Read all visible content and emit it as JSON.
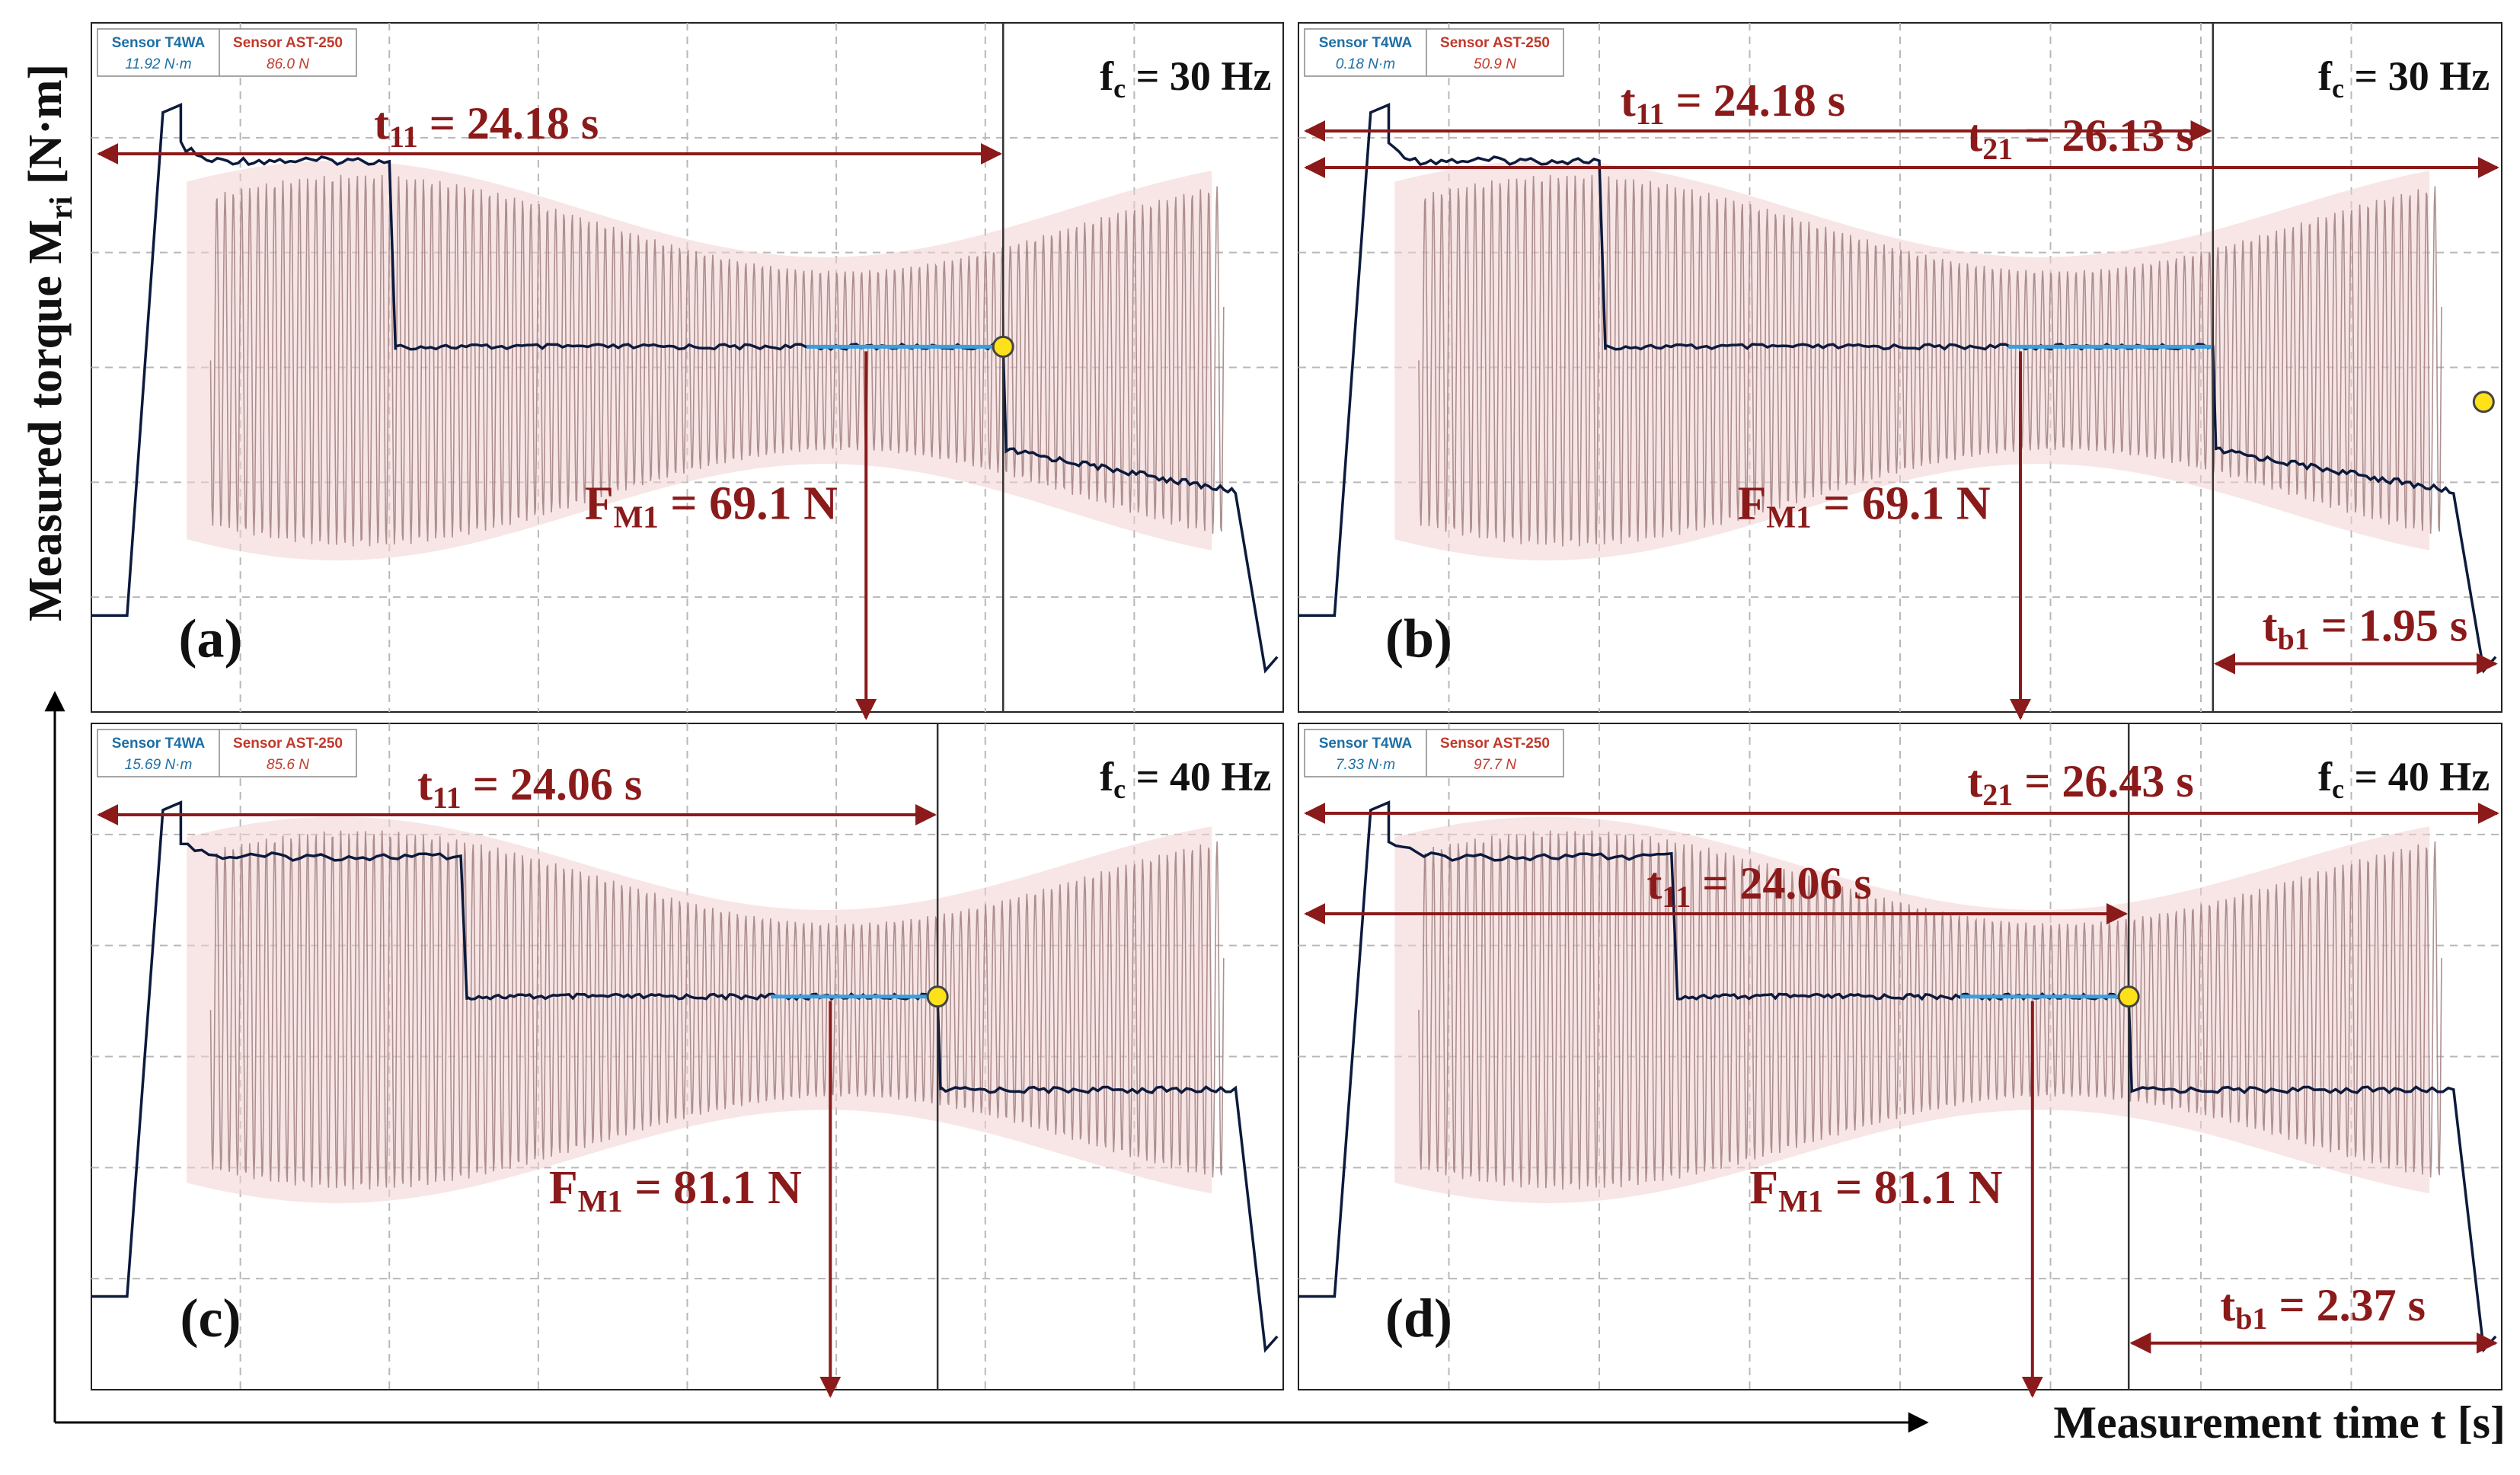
{
  "colors": {
    "annotation": "#8b1a1a",
    "legend_t4wa": "#1d6fa5",
    "legend_ast": "#c0392b",
    "signal_dark": "#0c1a3d",
    "signal_blue": "#39a0e0",
    "osc": "#a48484",
    "fill": "#f2d2d2",
    "marker": "#ffe11a",
    "grid": "#b8b8b8",
    "text": "#111111"
  },
  "axes": {
    "ylabel": "Measured torque M",
    "ylabel_sub": "ri",
    "ylabel_unit": " [N·m]",
    "xlabel": "Measurement time t [s]"
  },
  "chart_data": [
    {
      "type": "line",
      "panel": "(a)",
      "frequency": {
        "pre": "f",
        "sub": "c",
        "post": " = 30 Hz"
      },
      "legend": {
        "t4wa_name": "Sensor T4WA",
        "t4wa_value": "11.92 N·m",
        "ast_name": "Sensor AST-250",
        "ast_value": "86.0 N"
      },
      "force": {
        "pre": "F",
        "sub": "M1",
        "post": " = 69.1 N",
        "value_N": 69.1
      },
      "times": [
        {
          "pre": "t",
          "sub": "11",
          "post": " = 24.18 s",
          "value_s": 24.18
        }
      ]
    },
    {
      "type": "line",
      "panel": "(b)",
      "frequency": {
        "pre": "f",
        "sub": "c",
        "post": " = 30 Hz"
      },
      "legend": {
        "t4wa_name": "Sensor T4WA",
        "t4wa_value": "0.18 N·m",
        "ast_name": "Sensor AST-250",
        "ast_value": "50.9 N"
      },
      "force": {
        "pre": "F",
        "sub": "M1",
        "post": " = 69.1 N",
        "value_N": 69.1
      },
      "times": [
        {
          "pre": "t",
          "sub": "11",
          "post": " = 24.18 s",
          "value_s": 24.18
        },
        {
          "pre": "t",
          "sub": "21",
          "post": " = 26.13 s",
          "value_s": 26.13
        },
        {
          "pre": "t",
          "sub": "b1",
          "post": " = 1.95 s",
          "value_s": 1.95
        }
      ]
    },
    {
      "type": "line",
      "panel": "(c)",
      "frequency": {
        "pre": "f",
        "sub": "c",
        "post": " = 40 Hz"
      },
      "legend": {
        "t4wa_name": "Sensor T4WA",
        "t4wa_value": "15.69 N·m",
        "ast_name": "Sensor AST-250",
        "ast_value": "85.6 N"
      },
      "force": {
        "pre": "F",
        "sub": "M1",
        "post": " = 81.1 N",
        "value_N": 81.1
      },
      "times": [
        {
          "pre": "t",
          "sub": "11",
          "post": " = 24.06 s",
          "value_s": 24.06
        }
      ]
    },
    {
      "type": "line",
      "panel": "(d)",
      "frequency": {
        "pre": "f",
        "sub": "c",
        "post": " = 40 Hz"
      },
      "legend": {
        "t4wa_name": "Sensor T4WA",
        "t4wa_value": "7.33 N·m",
        "ast_name": "Sensor AST-250",
        "ast_value": "97.7 N"
      },
      "force": {
        "pre": "F",
        "sub": "M1",
        "post": " = 81.1 N",
        "value_N": 81.1
      },
      "times": [
        {
          "pre": "t",
          "sub": "11",
          "post": " = 24.06 s",
          "value_s": 24.06
        },
        {
          "pre": "t",
          "sub": "21",
          "post": " = 26.43 s",
          "value_s": 26.43
        },
        {
          "pre": "t",
          "sub": "b1",
          "post": " = 2.37 s",
          "value_s": 2.37
        }
      ]
    }
  ]
}
